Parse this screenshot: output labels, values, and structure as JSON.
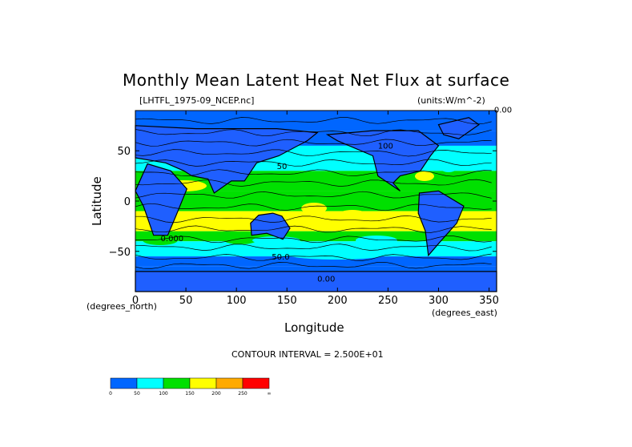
{
  "title": "Monthly Mean Latent Heat Net Flux at surface",
  "file_label": "[LHTFL_1975-09_NCEP.nc]",
  "units_label": "(units:W/m^-2)",
  "xlabel": "Longitude",
  "ylabel": "Latitude",
  "x_units": "(degrees_east)",
  "y_units": "(degrees_north)",
  "contour_interval_label": "CONTOUR INTERVAL = 2.500E+01",
  "colors": {
    "land": "#1f5fff",
    "c0": "#0066ff",
    "c50": "#00ffff",
    "c100": "#00e000",
    "c150": "#ffff00",
    "c200": "#ffaa00",
    "c250": "#ff0000"
  },
  "chart_data": {
    "type": "heatmap",
    "title": "Monthly Mean Latent Heat Net Flux at surface",
    "xlabel": "Longitude",
    "ylabel": "Latitude",
    "xlim": [
      0,
      357.5
    ],
    "ylim": [
      -90,
      90
    ],
    "x_ticks": [
      0,
      50,
      100,
      150,
      200,
      250,
      300,
      350
    ],
    "x_tick_labels": [
      "0",
      "50",
      "100",
      "150",
      "200",
      "250",
      "300",
      "350"
    ],
    "y_ticks": [
      50,
      0,
      -50
    ],
    "y_tick_labels": [
      "50",
      "0",
      "−50"
    ],
    "contour_interval": 25,
    "contour_labels": [
      "0.00",
      "100",
      "50",
      "0.000",
      "50.0",
      "0.00"
    ],
    "colorbar": {
      "levels": [
        0,
        50,
        100,
        150,
        200,
        250
      ],
      "tick_labels": [
        "0",
        "50",
        "100",
        "150",
        "200",
        "250",
        "∞"
      ],
      "colors": [
        "#0066ff",
        "#00ffff",
        "#00e000",
        "#ffff00",
        "#ffaa00",
        "#ff0000"
      ]
    },
    "zonal_bands": [
      {
        "lat": [
          70,
          90
        ],
        "value": 10
      },
      {
        "lat": [
          55,
          70
        ],
        "value": 30
      },
      {
        "lat": [
          45,
          55
        ],
        "value": 55
      },
      {
        "lat": [
          30,
          45
        ],
        "value": 80
      },
      {
        "lat": [
          10,
          30
        ],
        "value": 130
      },
      {
        "lat": [
          -10,
          10
        ],
        "value": 110
      },
      {
        "lat": [
          -30,
          -10
        ],
        "value": 160
      },
      {
        "lat": [
          -40,
          -30
        ],
        "value": 100
      },
      {
        "lat": [
          -55,
          -40
        ],
        "value": 60
      },
      {
        "lat": [
          -65,
          -55
        ],
        "value": 30
      },
      {
        "lat": [
          -90,
          -65
        ],
        "value": 5
      }
    ]
  }
}
